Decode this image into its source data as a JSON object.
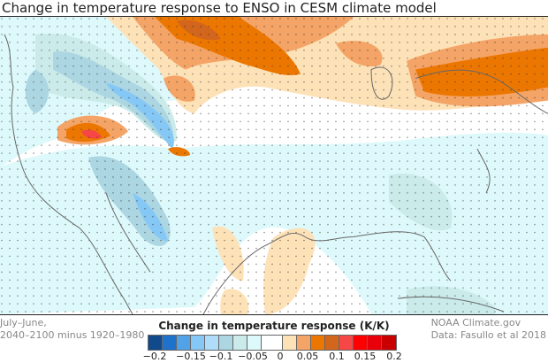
{
  "title": "Change in temperature response to ENSO in CESM climate model",
  "period_note": [
    "July–June,",
    "2040–2100 minus 1920–1980"
  ],
  "credit": [
    "NOAA Climate.gov",
    "Data: Fasullo et al 2018"
  ],
  "colorbar": {
    "title": "Change in temperature response (K/K)",
    "colors": [
      "#114a8a",
      "#1e72cc",
      "#52a2e8",
      "#86c8f5",
      "#aedcf9",
      "#acd6e2",
      "#cbebea",
      "#def9fb",
      "#ffffff",
      "#fde2b8",
      "#f4a466",
      "#ec7700",
      "#d2661c",
      "#f64646",
      "#ff0000",
      "#e8000a",
      "#c80000"
    ],
    "tick_labels": [
      "−0.2",
      "−0.15",
      "−0.1",
      "−0.05",
      "0",
      "0.05",
      "0.1",
      "0.15",
      "0.2"
    ]
  }
}
